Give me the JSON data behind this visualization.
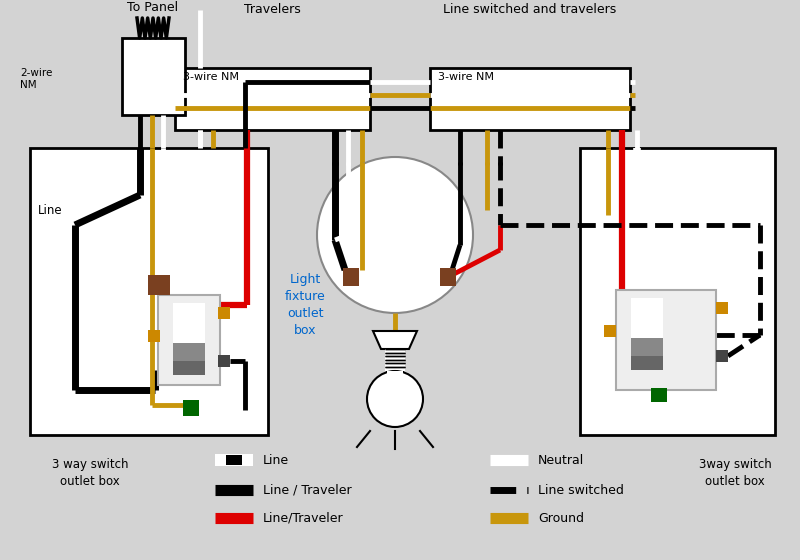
{
  "bg_color": "#d3d3d3",
  "fig_width": 8.0,
  "fig_height": 5.6,
  "labels": {
    "to_panel": "To Panel",
    "travelers": "Travelers",
    "line_switched_travelers": "Line switched and travelers",
    "two_wire_nm": "2-wire\nNM",
    "three_wire_nm_left": "3-wire NM",
    "three_wire_nm_right": "3-wire NM",
    "line_label": "Line",
    "light_fixture": "Light\nfixture\noutlet\nbox",
    "left_box_label": "3 way switch\noutlet box",
    "right_box_label": "3way switch\noutlet box"
  },
  "colors": {
    "black": "#000000",
    "white": "#ffffff",
    "red": "#dd0000",
    "yellow": "#c8960c",
    "green": "#006600",
    "brown": "#7a4020",
    "gray": "#888888",
    "orange": "#cc8800",
    "bg": "#d3d3d3",
    "dark_gray": "#444444"
  }
}
